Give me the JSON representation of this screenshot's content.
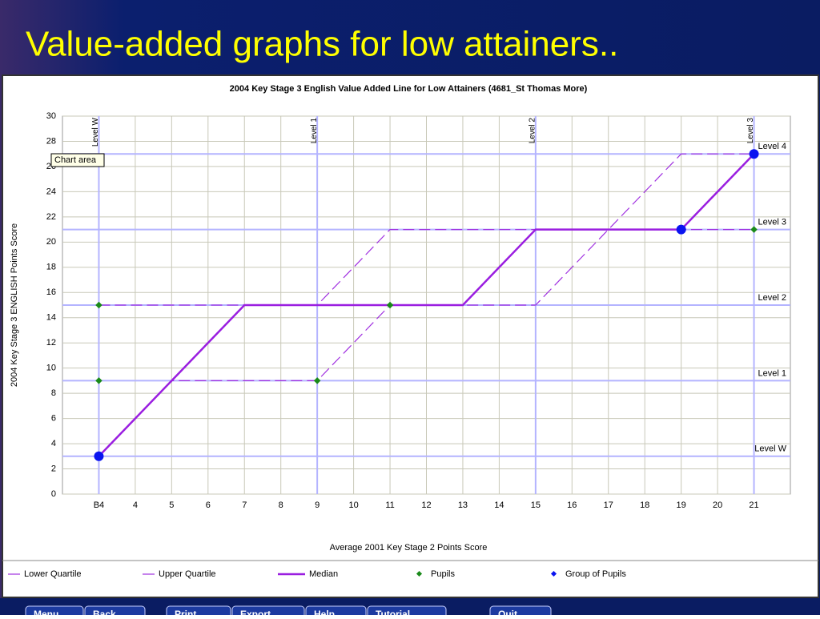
{
  "slide_title": "Value-added graphs for low attainers..",
  "toolbar": [
    "Menu",
    "Back",
    "Print",
    "Export",
    "Help",
    "Tutorial",
    "Quit"
  ],
  "chart_data": {
    "type": "line",
    "title": "2004 Key Stage 3 English Value Added Line for Low Attainers (4681_St Thomas More)",
    "x_label": "Average 2001 Key Stage 2 Points Score",
    "y_label": "2004 Key Stage 3 ENGLISH Points Score",
    "annotation": "Chart area",
    "xlim": [
      2,
      22
    ],
    "ylim": [
      0,
      30
    ],
    "xticks": [
      {
        "value": 3,
        "label": "B4"
      },
      4,
      5,
      6,
      7,
      8,
      9,
      10,
      11,
      12,
      13,
      14,
      15,
      16,
      17,
      18,
      19,
      20,
      21
    ],
    "yticks": [
      0,
      2,
      4,
      6,
      8,
      10,
      12,
      14,
      16,
      18,
      20,
      22,
      24,
      26,
      28,
      30
    ],
    "grid": true,
    "reference_lines": {
      "x": [
        {
          "value": 3,
          "label": "Level W"
        },
        {
          "value": 9,
          "label": "Level 1"
        },
        {
          "value": 15,
          "label": "Level 2"
        },
        {
          "value": 21,
          "label": "Level 3"
        }
      ],
      "y": [
        {
          "value": 3,
          "label": "Level W"
        },
        {
          "value": 9,
          "label": "Level 1"
        },
        {
          "value": 15,
          "label": "Level 2"
        },
        {
          "value": 21,
          "label": "Level 3"
        },
        {
          "value": 27,
          "label": "Level 4"
        }
      ]
    },
    "series": [
      {
        "name": "Lower Quartile",
        "color": "#a030e0",
        "style": "dashed",
        "x": [
          3,
          5,
          9,
          11,
          15,
          17,
          21
        ],
        "values": [
          3,
          9,
          9,
          15,
          15,
          21,
          21
        ]
      },
      {
        "name": "Upper Quartile",
        "color": "#a030e0",
        "style": "dashed",
        "x": [
          3,
          9,
          11,
          17,
          19,
          21
        ],
        "values": [
          15,
          15,
          21,
          21,
          27,
          27
        ]
      },
      {
        "name": "Median",
        "color": "#9a1ee0",
        "style": "solid",
        "x": [
          3,
          7,
          13,
          15,
          19,
          21
        ],
        "values": [
          3,
          15,
          15,
          21,
          21,
          27
        ]
      },
      {
        "name": "Pupils",
        "color": "#1a8a1a",
        "style": "points",
        "x": [
          3,
          3,
          9,
          11,
          21
        ],
        "values": [
          15,
          9,
          9,
          15,
          21
        ]
      },
      {
        "name": "Group of Pupils",
        "color": "#0a14f0",
        "style": "points",
        "x": [
          3,
          19,
          21
        ],
        "values": [
          3,
          21,
          27
        ]
      }
    ]
  }
}
